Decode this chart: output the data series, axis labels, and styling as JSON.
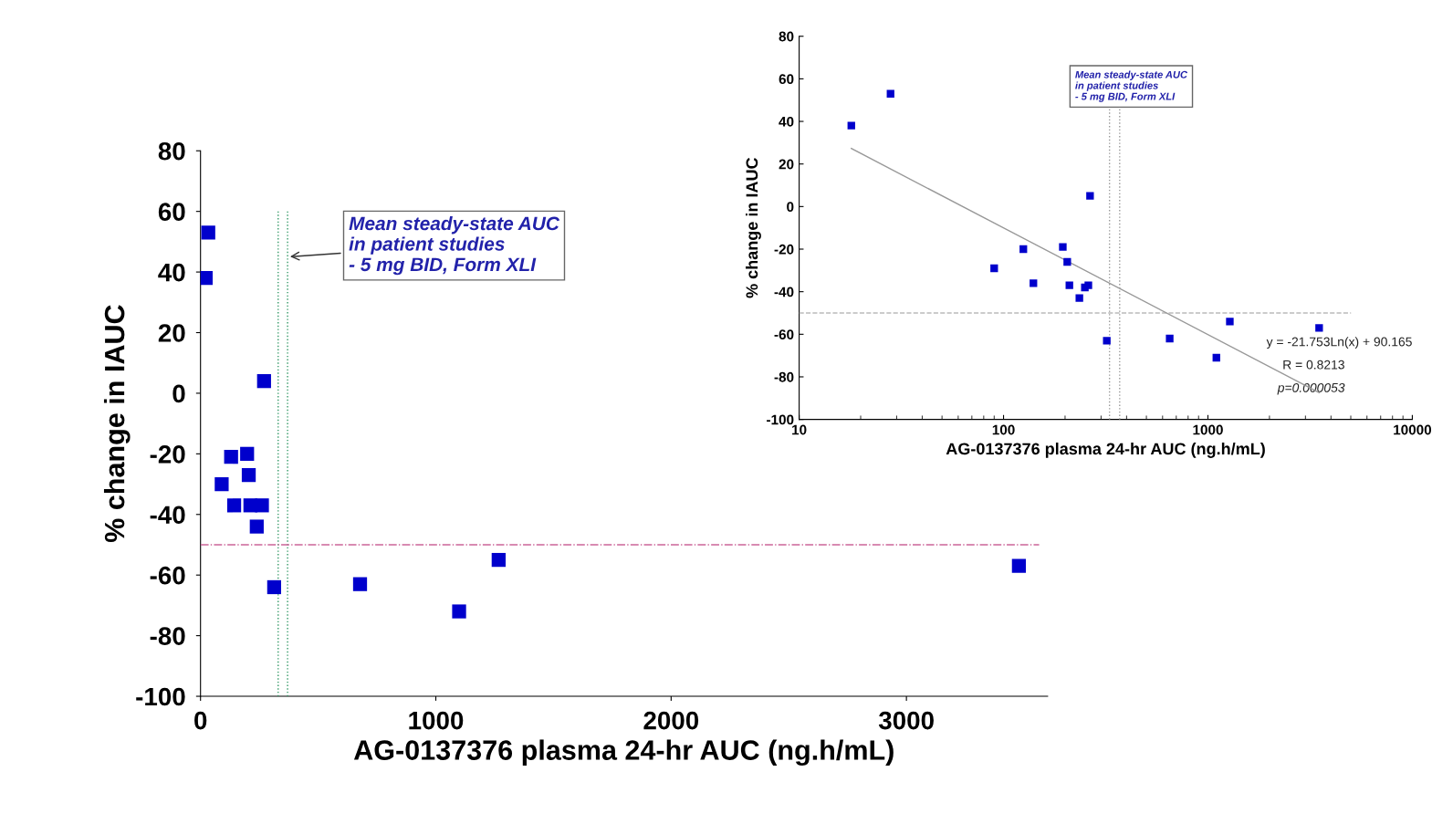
{
  "chart_data": [
    {
      "type": "scatter",
      "xlabel": "AG-0137376 plasma 24-hr AUC (ng.h/mL)",
      "ylabel": "% change in IAUC",
      "x": [
        22,
        33,
        90,
        130,
        143,
        198,
        205,
        212,
        239,
        250,
        261,
        270,
        313,
        678,
        1099,
        1267,
        3478
      ],
      "values": [
        38,
        53,
        -30,
        -21,
        -37,
        -20,
        -27,
        -37,
        -44,
        null,
        -37,
        4,
        -64,
        -63,
        -72,
        -55,
        -57
      ],
      "color": "#0000cc",
      "marker": "square",
      "xlim": [
        0,
        3600
      ],
      "xticks": [
        0,
        1000,
        2000,
        3000
      ],
      "ylim": [
        -100,
        80
      ],
      "yticks": [
        -100,
        -80,
        -60,
        -40,
        -20,
        0,
        20,
        40,
        60,
        80
      ],
      "ref_lines": [
        {
          "axis": "x",
          "value": 330,
          "color": "#339966",
          "line_style": "dotted"
        },
        {
          "axis": "x",
          "value": 370,
          "color": "#339966",
          "line_style": "dotted"
        },
        {
          "axis": "y",
          "value": -50,
          "color": "#cc6699",
          "line_style": "dashdot"
        }
      ],
      "annotations": [
        {
          "text": "Mean steady-state AUC\nin patient studies\n- 5 mg BID, Form XLI",
          "x": 370,
          "y": 45
        }
      ]
    },
    {
      "type": "scatter",
      "xlabel": "AG-0137376 plasma 24-hr AUC (ng.h/mL)",
      "ylabel": "% change in IAUC",
      "log": "x",
      "x": [
        18,
        28,
        90,
        125,
        140,
        195,
        205,
        210,
        235,
        250,
        260,
        265,
        320,
        650,
        1100,
        1280,
        3500
      ],
      "series": [
        {
          "type": "scatter",
          "color": "#0000cc",
          "marker": "square",
          "values": [
            38,
            53,
            -29,
            -20,
            -36,
            -19,
            -26,
            -37,
            -43,
            -38,
            -37,
            5,
            -63,
            -62,
            -71,
            -54,
            -57
          ]
        },
        {
          "type": "line",
          "color": "#999999",
          "marker": "none",
          "x": [
            18,
            3500
          ],
          "values": [
            27.3,
            -87.4
          ]
        }
      ],
      "xlim": [
        10,
        10000
      ],
      "xticks": [
        10,
        100,
        1000,
        10000
      ],
      "ylim": [
        -100,
        80
      ],
      "yticks": [
        -100,
        -80,
        -60,
        -40,
        -20,
        0,
        20,
        40,
        60,
        80
      ],
      "ref_lines": [
        {
          "axis": "x",
          "value": 330,
          "color": "#999999",
          "line_style": "dotted"
        },
        {
          "axis": "x",
          "value": 370,
          "color": "#999999",
          "line_style": "dotted"
        },
        {
          "axis": "y",
          "value": -50,
          "color": "#bbbbbb",
          "line_style": "dashed"
        }
      ],
      "annotations": [
        {
          "text": "Mean steady-state AUC\nin patient studies\n- 5 mg BID, Form XLI",
          "x": 370,
          "y": 55
        },
        "y = -21.753Ln(x) + 90.165",
        "R = 0.8213",
        "p=0.000053"
      ]
    }
  ]
}
